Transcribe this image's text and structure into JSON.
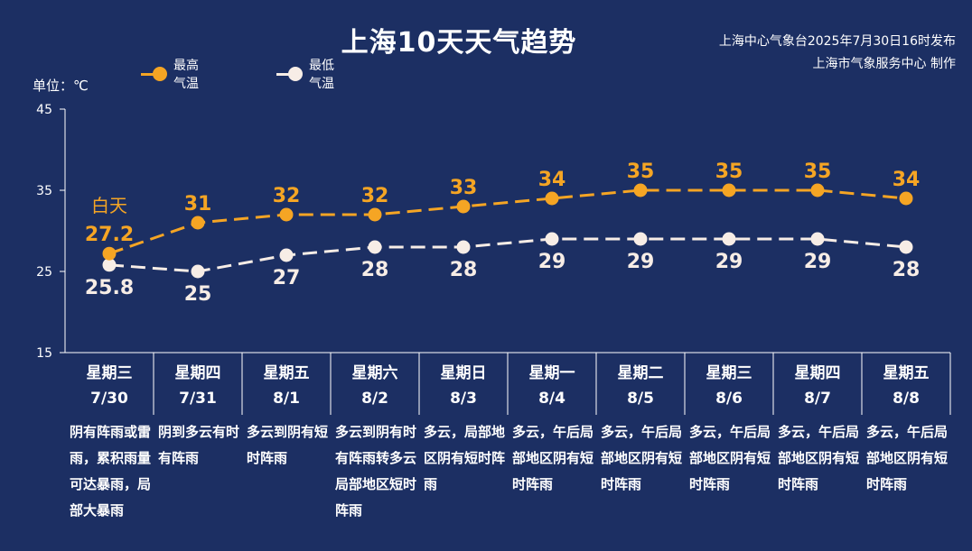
{
  "title": "上海10天天气趋势",
  "source_line1": "上海中心气象台2025年7月30日16时发布",
  "source_line2": "上海市气象服务中心 制作",
  "unit_label": "单位：℃",
  "daytime_label": "白天",
  "colors": {
    "background": "#1c2f63",
    "high": "#f5a524",
    "low": "#f7ede6",
    "axis": "#ffffff"
  },
  "chart_data": {
    "type": "line",
    "categories": [
      "7/30",
      "7/31",
      "8/1",
      "8/2",
      "8/3",
      "8/4",
      "8/5",
      "8/6",
      "8/7",
      "8/8"
    ],
    "ylim": [
      15,
      45
    ],
    "yticks": [
      15,
      25,
      35,
      45
    ],
    "ylabel": "单位：℃",
    "legend_position": "top-left",
    "grid": false,
    "series": [
      {
        "name": "最高气温",
        "values": [
          27.2,
          31,
          32,
          32,
          33,
          34,
          35,
          35,
          35,
          34
        ]
      },
      {
        "name": "最低气温",
        "values": [
          25.8,
          25,
          27,
          28,
          28,
          29,
          29,
          29,
          29,
          28
        ]
      }
    ]
  },
  "days": [
    {
      "weekday": "星期三",
      "date": "7/30",
      "desc": "阴有阵雨或雷雨，累积雨量可达暴雨，局部大暴雨"
    },
    {
      "weekday": "星期四",
      "date": "7/31",
      "desc": "阴到多云有时有阵雨"
    },
    {
      "weekday": "星期五",
      "date": "8/1",
      "desc": "多云到阴有短时阵雨"
    },
    {
      "weekday": "星期六",
      "date": "8/2",
      "desc": "多云到阴有时有阵雨转多云局部地区短时阵雨"
    },
    {
      "weekday": "星期日",
      "date": "8/3",
      "desc": "多云，局部地区阴有短时阵雨"
    },
    {
      "weekday": "星期一",
      "date": "8/4",
      "desc": "多云，午后局部地区阴有短时阵雨"
    },
    {
      "weekday": "星期二",
      "date": "8/5",
      "desc": "多云，午后局部地区阴有短时阵雨"
    },
    {
      "weekday": "星期三",
      "date": "8/6",
      "desc": "多云，午后局部地区阴有短时阵雨"
    },
    {
      "weekday": "星期四",
      "date": "8/7",
      "desc": "多云，午后局部地区阴有短时阵雨"
    },
    {
      "weekday": "星期五",
      "date": "8/8",
      "desc": "多云，午后局部地区阴有短时阵雨"
    }
  ]
}
